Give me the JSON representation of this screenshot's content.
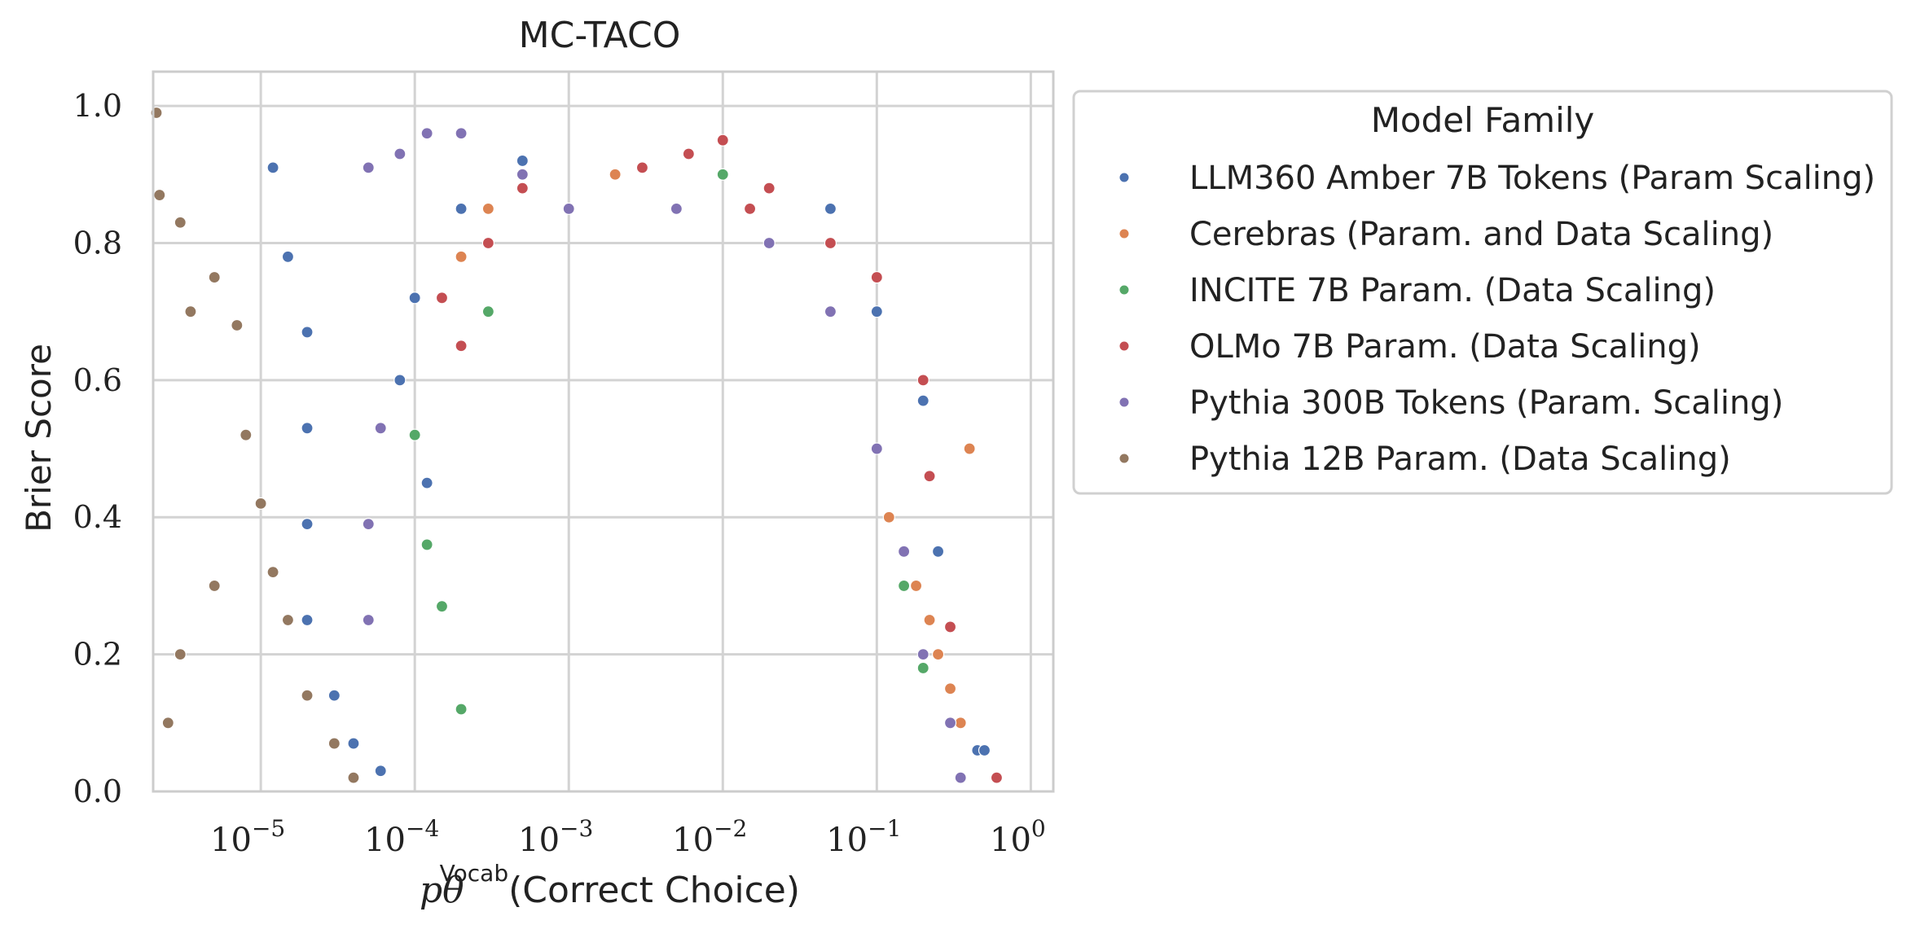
{
  "chart_data": {
    "type": "scatter",
    "title": "MC-TACO",
    "xlabel_math": "pθ",
    "xlabel_sup": "Vocab",
    "xlabel_rest": "(Correct Choice)",
    "ylabel": "Brier Score",
    "xscale": "log",
    "xlim": [
      2e-06,
      1.4
    ],
    "ylim": [
      0.0,
      1.05
    ],
    "x_tick_base": "10",
    "x_tick_exponents": [
      "−5",
      "−4",
      "−3",
      "−2",
      "−1",
      "0"
    ],
    "x_tick_values": [
      1e-05,
      0.0001,
      0.001,
      0.01,
      0.1,
      1
    ],
    "y_ticks": [
      0.0,
      0.2,
      0.4,
      0.6,
      0.8,
      1.0
    ],
    "y_tick_labels": [
      "0.0",
      "0.2",
      "0.4",
      "0.6",
      "0.8",
      "1.0"
    ],
    "grid": true,
    "legend": {
      "title": "Model Family",
      "placement": "outside-right-top"
    },
    "series": [
      {
        "name": "LLM360 Amber 7B Tokens (Param Scaling)",
        "color": "#4C72B0",
        "points": [
          [
            1.2e-05,
            0.91
          ],
          [
            1.5e-05,
            0.78
          ],
          [
            2e-05,
            0.67
          ],
          [
            2e-05,
            0.53
          ],
          [
            2e-05,
            0.39
          ],
          [
            2e-05,
            0.25
          ],
          [
            3e-05,
            0.14
          ],
          [
            4e-05,
            0.07
          ],
          [
            6e-05,
            0.03
          ],
          [
            8e-05,
            0.6
          ],
          [
            0.0001,
            0.72
          ],
          [
            0.00012,
            0.45
          ],
          [
            0.0002,
            0.85
          ],
          [
            0.0005,
            0.92
          ],
          [
            0.05,
            0.85
          ],
          [
            0.1,
            0.7
          ],
          [
            0.2,
            0.57
          ],
          [
            0.25,
            0.35
          ],
          [
            0.3,
            0.15
          ],
          [
            0.45,
            0.06
          ],
          [
            0.5,
            0.06
          ]
        ]
      },
      {
        "name": "Cerebras (Param. and Data Scaling)",
        "color": "#DD8452",
        "points": [
          [
            0.0002,
            0.78
          ],
          [
            0.0003,
            0.85
          ],
          [
            0.002,
            0.9
          ],
          [
            0.12,
            0.4
          ],
          [
            0.18,
            0.3
          ],
          [
            0.22,
            0.25
          ],
          [
            0.25,
            0.2
          ],
          [
            0.3,
            0.15
          ],
          [
            0.35,
            0.1
          ],
          [
            0.4,
            0.5
          ]
        ]
      },
      {
        "name": "INCITE 7B Param. (Data Scaling)",
        "color": "#55A868",
        "points": [
          [
            0.0001,
            0.52
          ],
          [
            0.00012,
            0.36
          ],
          [
            0.00015,
            0.27
          ],
          [
            0.0002,
            0.12
          ],
          [
            0.0003,
            0.7
          ],
          [
            0.01,
            0.9
          ],
          [
            0.15,
            0.3
          ],
          [
            0.2,
            0.18
          ]
        ]
      },
      {
        "name": "OLMo 7B Param. (Data Scaling)",
        "color": "#C44E52",
        "points": [
          [
            0.00015,
            0.72
          ],
          [
            0.0002,
            0.65
          ],
          [
            0.0003,
            0.8
          ],
          [
            0.0005,
            0.88
          ],
          [
            0.003,
            0.91
          ],
          [
            0.006,
            0.93
          ],
          [
            0.01,
            0.95
          ],
          [
            0.015,
            0.85
          ],
          [
            0.02,
            0.88
          ],
          [
            0.05,
            0.8
          ],
          [
            0.1,
            0.75
          ],
          [
            0.2,
            0.6
          ],
          [
            0.22,
            0.46
          ],
          [
            0.3,
            0.24
          ],
          [
            0.6,
            0.02
          ]
        ]
      },
      {
        "name": "Pythia 300B Tokens (Param. Scaling)",
        "color": "#8172B3",
        "points": [
          [
            5e-05,
            0.91
          ],
          [
            8e-05,
            0.93
          ],
          [
            0.00012,
            0.96
          ],
          [
            0.0002,
            0.96
          ],
          [
            0.0005,
            0.9
          ],
          [
            0.001,
            0.85
          ],
          [
            0.005,
            0.85
          ],
          [
            0.02,
            0.8
          ],
          [
            0.05,
            0.7
          ],
          [
            0.1,
            0.5
          ],
          [
            0.15,
            0.35
          ],
          [
            0.2,
            0.2
          ],
          [
            0.3,
            0.1
          ],
          [
            0.35,
            0.02
          ],
          [
            6e-05,
            0.53
          ],
          [
            5e-05,
            0.25
          ],
          [
            5e-05,
            0.39
          ]
        ]
      },
      {
        "name": "Pythia 12B Param. (Data Scaling)",
        "color": "#937860",
        "points": [
          [
            2.1e-06,
            0.99
          ],
          [
            2.2e-06,
            0.87
          ],
          [
            3e-06,
            0.83
          ],
          [
            3.5e-06,
            0.7
          ],
          [
            5e-06,
            0.75
          ],
          [
            7e-06,
            0.68
          ],
          [
            8e-06,
            0.52
          ],
          [
            1e-05,
            0.42
          ],
          [
            1.2e-05,
            0.32
          ],
          [
            1.5e-05,
            0.25
          ],
          [
            2e-05,
            0.14
          ],
          [
            3e-05,
            0.07
          ],
          [
            4e-05,
            0.02
          ],
          [
            5e-06,
            0.3
          ],
          [
            3e-06,
            0.2
          ],
          [
            2.5e-06,
            0.1
          ]
        ]
      }
    ]
  }
}
